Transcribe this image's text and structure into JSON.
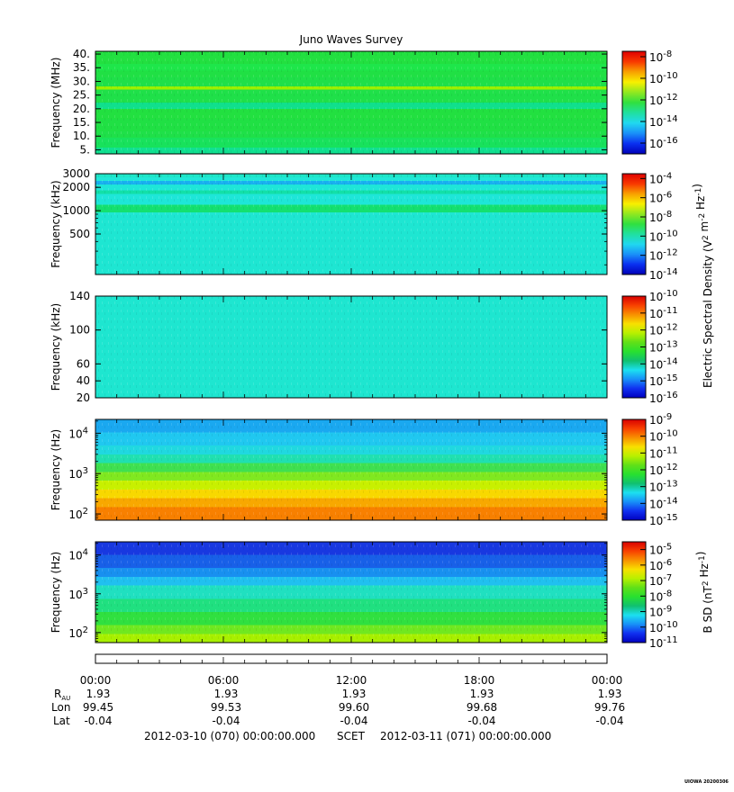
{
  "chart_data": {
    "type": "heatmap",
    "title": "Juno Waves Survey",
    "panels": [
      {
        "ylabel": "Frequency (MHz)",
        "yscale": "linear",
        "ylim": [
          3.5,
          41
        ],
        "yticks": [
          {
            "v": 5,
            "t": "5."
          },
          {
            "v": 10,
            "t": "10."
          },
          {
            "v": 15,
            "t": "15."
          },
          {
            "v": 20,
            "t": "20."
          },
          {
            "v": 25,
            "t": "25."
          },
          {
            "v": 30,
            "t": "30."
          },
          {
            "v": 35,
            "t": "35."
          },
          {
            "v": 40,
            "t": "40."
          }
        ],
        "colorbar": {
          "min_exp": -17,
          "max_exp": -7.5,
          "tick_exps": [
            -16,
            -14,
            -12,
            -10,
            -8
          ],
          "palette": "full"
        },
        "rows_top_to_bottom": [
          "#22e040",
          "#22e040",
          "#1ee64a",
          "#20e044",
          "#1fe049",
          "#9cf000",
          "#1fe049",
          "#10e08c",
          "#22e040",
          "#20e044",
          "#1fe049",
          "#18e25c",
          "#10e090"
        ],
        "row_weights": [
          2,
          2,
          2,
          2,
          3,
          1,
          4,
          2,
          3,
          4,
          2,
          3,
          2
        ]
      },
      {
        "ylabel": "Frequency (kHz)",
        "yscale": "log",
        "ylim": [
          150,
          3000
        ],
        "yticks": [
          {
            "v": 500,
            "t": "500"
          },
          {
            "v": 1000,
            "t": "1000"
          },
          {
            "v": 2000,
            "t": "2000"
          },
          {
            "v": 3000,
            "t": "3000"
          }
        ],
        "colorbar": {
          "min_exp": -14,
          "max_exp": -3.5,
          "tick_exps": [
            -14,
            -12,
            -10,
            -8,
            -6,
            -4
          ],
          "palette": "full"
        },
        "rows_top_to_bottom": [
          "#1ee6c8",
          "#20e8d8",
          "#18b0f0",
          "#1ee6d8",
          "#12e0a8",
          "#1ee6d8",
          "#14e070",
          "#1ee6d2",
          "#1ee6d2"
        ],
        "row_weights": [
          4,
          4,
          4,
          6,
          4,
          12,
          8,
          20,
          48
        ]
      },
      {
        "ylabel": "Frequency (kHz)",
        "yscale": "linear",
        "ylim": [
          20,
          140
        ],
        "yticks": [
          {
            "v": 20,
            "t": "20"
          },
          {
            "v": 40,
            "t": "40"
          },
          {
            "v": 60,
            "t": "60"
          },
          {
            "v": 100,
            "t": "100"
          },
          {
            "v": 140,
            "t": "140"
          }
        ],
        "colorbar": {
          "min_exp": -16,
          "max_exp": -10,
          "tick_exps": [
            -16,
            -15,
            -14,
            -13,
            -12,
            -11,
            -10
          ],
          "palette": "banded"
        },
        "rows_top_to_bottom": [
          "#1ee6d0"
        ],
        "row_weights": [
          1
        ]
      },
      {
        "ylabel": "Frequency (Hz)",
        "yscale": "log",
        "ylim": [
          70,
          22000
        ],
        "yticks": [
          {
            "v": 100,
            "t": "10^2"
          },
          {
            "v": 1000,
            "t": "10^3"
          },
          {
            "v": 10000,
            "t": "10^4"
          }
        ],
        "colorbar": {
          "min_exp": -15,
          "max_exp": -9,
          "tick_exps": [
            -15,
            -14,
            -13,
            -12,
            -11,
            -10,
            -9
          ],
          "palette": "banded"
        },
        "rows_top_to_bottom": [
          "#1aa8f0",
          "#20c8f0",
          "#20d8e0",
          "#20e0b0",
          "#40e050",
          "#80e820",
          "#c8f000",
          "#f8d800",
          "#f8a800",
          "#f88000"
        ],
        "row_weights": [
          3,
          3,
          2,
          2,
          2,
          2,
          2,
          2,
          2,
          3
        ]
      },
      {
        "ylabel": "Frequency (Hz)",
        "yscale": "log",
        "ylim": [
          55,
          22000
        ],
        "yticks": [
          {
            "v": 100,
            "t": "10^2"
          },
          {
            "v": 1000,
            "t": "10^3"
          },
          {
            "v": 10000,
            "t": "10^4"
          }
        ],
        "colorbar": {
          "min_exp": -11,
          "max_exp": -4.5,
          "tick_exps": [
            -11,
            -10,
            -9,
            -8,
            -7,
            -6,
            -5
          ],
          "palette": "banded"
        },
        "rows_top_to_bottom": [
          "#1838e0",
          "#1860e8",
          "#1890f0",
          "#20c0f0",
          "#20e0c0",
          "#20e080",
          "#30e040",
          "#70e820",
          "#a8f000"
        ],
        "row_weights": [
          3,
          3,
          2,
          2,
          3,
          3,
          3,
          2,
          2
        ]
      }
    ],
    "right_labels": [
      {
        "text": "Electric Spectral Density (V^2 m^-2 Hz^-1)",
        "panels": [
          1,
          2
        ]
      },
      {
        "text": "B SD (nT^2 Hz^-1)",
        "panels": [
          4
        ]
      }
    ],
    "x_axis": {
      "tick_labels": [
        "00:00",
        "06:00",
        "12:00",
        "18:00",
        "00:00"
      ],
      "hours": [
        0,
        6,
        12,
        18,
        24
      ]
    },
    "ephemeris": {
      "row_labels": [
        "R_AU",
        "Lon",
        "Lat"
      ],
      "R_AU": [
        "1.93",
        "1.93",
        "1.93",
        "1.93",
        "1.93"
      ],
      "Lon": [
        "99.45",
        "99.53",
        "99.60",
        "99.68",
        "99.76"
      ],
      "Lat": [
        "-0.04",
        "-0.04",
        "-0.04",
        "-0.04",
        "-0.04"
      ]
    },
    "footer": {
      "start": "2012-03-10 (070) 00:00:00.000",
      "frame": "SCET",
      "end": "2012-03-11 (071) 00:00:00.000",
      "credit": "UIOWA 20200306"
    }
  }
}
